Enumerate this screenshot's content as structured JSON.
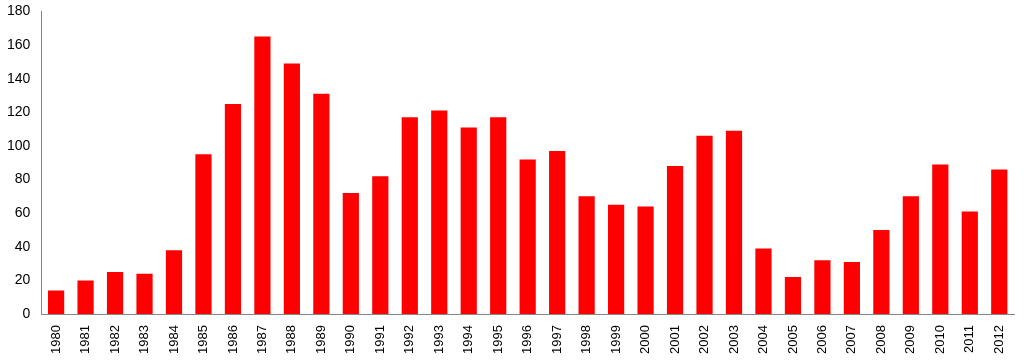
{
  "chart_data": {
    "type": "bar",
    "categories": [
      "1980",
      "1981",
      "1982",
      "1983",
      "1984",
      "1985",
      "1986",
      "1987",
      "1988",
      "1989",
      "1990",
      "1991",
      "1992",
      "1993",
      "1994",
      "1995",
      "1996",
      "1997",
      "1998",
      "1999",
      "2000",
      "2001",
      "2002",
      "2003",
      "2004",
      "2005",
      "2006",
      "2007",
      "2008",
      "2009",
      "2010",
      "2011",
      "2012"
    ],
    "values": [
      14,
      20,
      25,
      24,
      38,
      95,
      125,
      165,
      149,
      131,
      72,
      82,
      117,
      121,
      111,
      117,
      92,
      97,
      70,
      65,
      64,
      88,
      106,
      109,
      39,
      22,
      32,
      31,
      50,
      70,
      89,
      61,
      86
    ],
    "color": "#ff0000",
    "ylim": [
      0,
      180
    ],
    "yticks": [
      0,
      20,
      40,
      60,
      80,
      100,
      120,
      140,
      160,
      180
    ],
    "grid": false
  }
}
